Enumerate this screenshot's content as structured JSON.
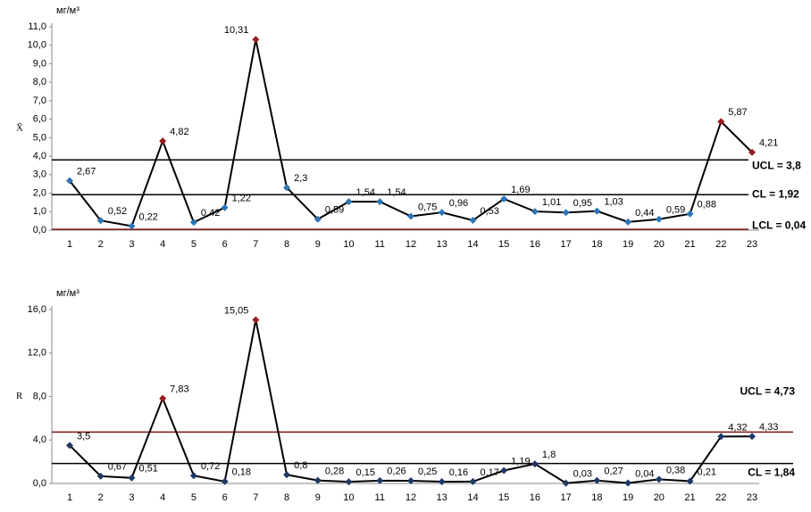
{
  "chart_data": [
    {
      "type": "line",
      "unit": "мг/м³",
      "y_label": "X̄",
      "categories": [
        "1",
        "2",
        "3",
        "4",
        "5",
        "6",
        "7",
        "8",
        "9",
        "10",
        "11",
        "12",
        "13",
        "14",
        "15",
        "16",
        "17",
        "18",
        "19",
        "20",
        "21",
        "22",
        "23"
      ],
      "values": [
        2.67,
        0.52,
        0.22,
        4.82,
        0.42,
        1.22,
        10.31,
        2.3,
        0.59,
        1.54,
        1.54,
        0.75,
        0.96,
        0.53,
        1.69,
        1.01,
        0.95,
        1.03,
        0.44,
        0.59,
        0.88,
        5.87,
        4.21
      ],
      "value_labels": [
        "2,67",
        "0,52",
        "0,22",
        "4,82",
        "0,42",
        "1,22",
        "10,31",
        "2,3",
        "0,59",
        "1,54",
        "1,54",
        "0,75",
        "0,96",
        "0,53",
        "1,69",
        "1,01",
        "0,95",
        "1,03",
        "0,44",
        "0,59",
        "0,88",
        "5,87",
        "4,21"
      ],
      "line_color": "#000000",
      "point_colors": [
        "#2e75b6",
        "#2e75b6",
        "#2e75b6",
        "#9b1c1c",
        "#2e75b6",
        "#2e75b6",
        "#9b1c1c",
        "#2e75b6",
        "#2e75b6",
        "#2e75b6",
        "#2e75b6",
        "#2e75b6",
        "#2e75b6",
        "#2e75b6",
        "#2e75b6",
        "#2e75b6",
        "#2e75b6",
        "#2e75b6",
        "#2e75b6",
        "#2e75b6",
        "#2e75b6",
        "#9b1c1c",
        "#9b1c1c"
      ],
      "ylim": [
        0,
        11
      ],
      "yticks": [
        {
          "value": 0,
          "label": "0,0"
        },
        {
          "value": 1,
          "label": "1,0"
        },
        {
          "value": 2,
          "label": "2,0"
        },
        {
          "value": 3,
          "label": "3,0"
        },
        {
          "value": 4,
          "label": "4,0"
        },
        {
          "value": 5,
          "label": "5,0"
        },
        {
          "value": 6,
          "label": "6,0"
        },
        {
          "value": 7,
          "label": "7,0"
        },
        {
          "value": 8,
          "label": "8,0"
        },
        {
          "value": 9,
          "label": "9,0"
        },
        {
          "value": 10,
          "label": "10,0"
        },
        {
          "value": 11,
          "label": "11,0"
        }
      ],
      "control_lines": [
        {
          "label": "UCL = 3,8",
          "value": 3.8,
          "color": "#000000"
        },
        {
          "label": "CL = 1,92",
          "value": 1.92,
          "color": "#000000"
        },
        {
          "label": "LCL = 0,04",
          "value": 0.04,
          "color": "#7b1414"
        }
      ]
    },
    {
      "type": "line",
      "unit": "мг/м³",
      "y_label": "R",
      "categories": [
        "1",
        "2",
        "3",
        "4",
        "5",
        "6",
        "7",
        "8",
        "9",
        "10",
        "11",
        "12",
        "13",
        "14",
        "15",
        "16",
        "17",
        "18",
        "19",
        "20",
        "21",
        "22",
        "23"
      ],
      "values": [
        3.5,
        0.67,
        0.51,
        7.83,
        0.72,
        0.18,
        15.05,
        0.8,
        0.28,
        0.15,
        0.26,
        0.25,
        0.16,
        0.17,
        1.19,
        1.8,
        0.03,
        0.27,
        0.04,
        0.38,
        0.21,
        4.32,
        4.33
      ],
      "value_labels": [
        "3,5",
        "0,67",
        "0,51",
        "7,83",
        "0,72",
        "0,18",
        "15,05",
        "0,8",
        "0,28",
        "0,15",
        "0,26",
        "0,25",
        "0,16",
        "0,17",
        "1,19",
        "1,8",
        "0,03",
        "0,27",
        "0,04",
        "0,38",
        "0,21",
        "4,32",
        "4,33"
      ],
      "line_color": "#000000",
      "point_colors": [
        "#1f3864",
        "#1f3864",
        "#1f3864",
        "#9b1c1c",
        "#1f3864",
        "#1f3864",
        "#9b1c1c",
        "#1f3864",
        "#1f3864",
        "#1f3864",
        "#1f3864",
        "#1f3864",
        "#1f3864",
        "#1f3864",
        "#1f3864",
        "#1f3864",
        "#1f3864",
        "#1f3864",
        "#1f3864",
        "#1f3864",
        "#1f3864",
        "#1f3864",
        "#1f3864"
      ],
      "ylim": [
        0,
        16
      ],
      "yticks": [
        {
          "value": 0,
          "label": "0,0"
        },
        {
          "value": 4,
          "label": "4,0"
        },
        {
          "value": 8,
          "label": "8,0"
        },
        {
          "value": 12,
          "label": "12,0"
        },
        {
          "value": 16,
          "label": "16,0"
        }
      ],
      "control_lines": [
        {
          "label": "UCL = 4,73",
          "value": 4.73,
          "color": "#7b1414"
        },
        {
          "label": "CL = 1,84",
          "value": 1.84,
          "color": "#000000"
        }
      ]
    }
  ]
}
